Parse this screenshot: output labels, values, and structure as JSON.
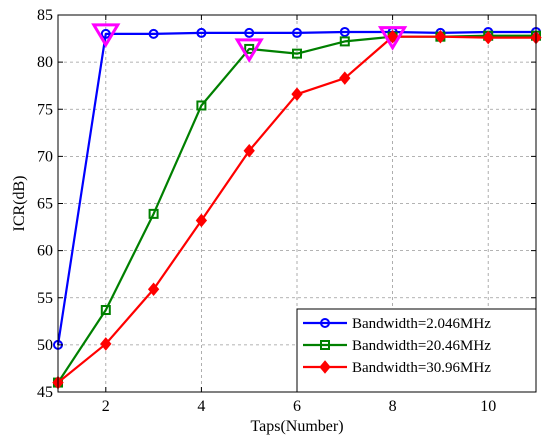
{
  "chart_data": {
    "type": "line",
    "title": "",
    "xlabel": "Taps(Number)",
    "ylabel": "ICR(dB)",
    "xlim": [
      1,
      11
    ],
    "ylim": [
      45,
      85
    ],
    "xticks": [
      2,
      4,
      6,
      8,
      10
    ],
    "yticks": [
      45,
      50,
      55,
      60,
      65,
      70,
      75,
      80,
      85
    ],
    "grid": true,
    "legend_position": "bottom-right",
    "x": [
      1,
      2,
      3,
      4,
      5,
      6,
      7,
      8,
      9,
      10,
      11
    ],
    "series": [
      {
        "name": "Bandwidth=2.046MHz",
        "color": "#0000ff",
        "marker": "circle",
        "values": [
          50.0,
          83.0,
          83.0,
          83.1,
          83.1,
          83.1,
          83.2,
          83.2,
          83.1,
          83.2,
          83.2
        ]
      },
      {
        "name": "Bandwidth=20.46MHz",
        "color": "#008000",
        "marker": "square",
        "values": [
          46.0,
          53.7,
          63.9,
          75.4,
          81.4,
          80.9,
          82.2,
          82.7,
          82.7,
          82.8,
          82.8
        ]
      },
      {
        "name": "Bandwidth=30.96MHz",
        "color": "#ff0000",
        "marker": "diamond",
        "values": [
          46.0,
          50.1,
          55.9,
          63.2,
          70.6,
          76.6,
          78.3,
          82.7,
          82.7,
          82.6,
          82.6
        ]
      }
    ],
    "annotations": [
      {
        "marker": "triangle",
        "color": "#ff00ff",
        "x": 2,
        "y": 83.0
      },
      {
        "marker": "triangle",
        "color": "#ff00ff",
        "x": 5,
        "y": 81.4
      },
      {
        "marker": "triangle",
        "color": "#ff00ff",
        "x": 8,
        "y": 82.7
      }
    ]
  }
}
